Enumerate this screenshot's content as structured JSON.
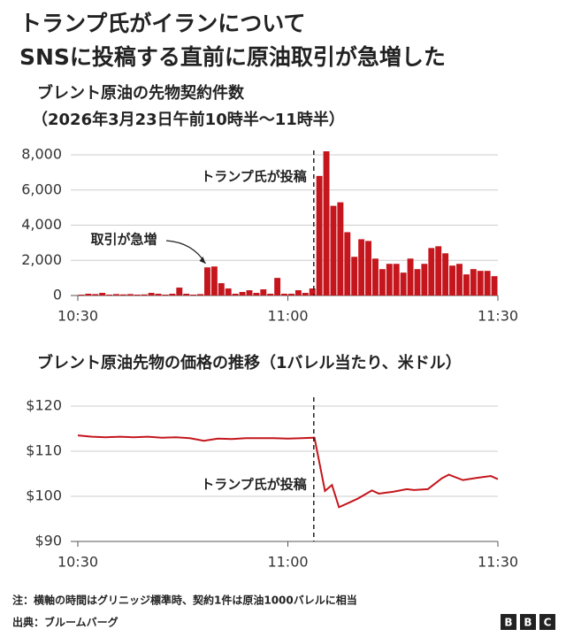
{
  "header": {
    "title_lines": [
      "トランプ氏がイランについて",
      "SNSに投稿する直前に原油取引が急増した"
    ]
  },
  "chart_data": [
    {
      "type": "bar",
      "title": "ブレント原油の先物契約件数",
      "subtitle": "（2026年3月23日午前10時半～11時半）",
      "color": "#c4161c",
      "grid": true,
      "x": [
        0,
        1,
        2,
        3,
        4,
        5,
        6,
        7,
        8,
        9,
        10,
        11,
        12,
        13,
        14,
        15,
        16,
        17,
        18,
        19,
        20,
        21,
        22,
        23,
        24,
        25,
        26,
        27,
        28,
        29,
        30,
        31,
        32,
        33,
        34,
        35,
        36,
        37,
        38,
        39,
        40,
        41,
        42,
        43,
        44,
        45,
        46,
        47,
        48,
        49,
        50,
        51,
        52,
        53,
        54,
        55,
        56,
        57,
        58,
        59
      ],
      "values": [
        50,
        100,
        80,
        150,
        50,
        80,
        60,
        80,
        50,
        60,
        150,
        100,
        50,
        100,
        450,
        100,
        50,
        80,
        1600,
        1650,
        700,
        400,
        100,
        200,
        300,
        150,
        350,
        100,
        1000,
        100,
        100,
        300,
        150,
        400,
        6800,
        8200,
        5100,
        5300,
        3600,
        2200,
        3200,
        3100,
        2100,
        1500,
        1800,
        1800,
        1300,
        2100,
        1500,
        1800,
        2700,
        2800,
        2400,
        1700,
        1800,
        1200,
        1500,
        1400,
        1400,
        1100
      ],
      "xlim": [
        0,
        60
      ],
      "xticks": [
        {
          "value": 0,
          "label": "10:30"
        },
        {
          "value": 30,
          "label": "11:00"
        },
        {
          "value": 60,
          "label": "11:30"
        }
      ],
      "ylim": [
        0,
        8000
      ],
      "yticks": [
        0,
        {
          "value": 2000,
          "label": "2,000"
        },
        {
          "value": 4000,
          "label": "4,000"
        },
        {
          "value": 6000,
          "label": "6,000"
        },
        {
          "value": 8000,
          "label": "8,000"
        }
      ],
      "annotations": [
        {
          "text": "トランプ氏が投稿",
          "x": 33.7
        },
        {
          "text": "取引が急増",
          "x": 18.5
        }
      ]
    },
    {
      "type": "line",
      "title": "ブレント原油先物の価格の推移（1バレル当たり、米ドル）",
      "series": [
        {
          "name": "ブレント原油先物",
          "color": "#c4161c",
          "x": [
            0,
            2,
            4,
            6,
            8,
            10,
            12,
            14,
            16,
            18,
            20,
            22,
            24,
            26,
            28,
            30,
            32,
            33.8,
            35.3,
            36.3,
            37.3,
            38.6,
            40,
            42,
            43,
            44,
            45,
            47,
            48,
            50,
            52,
            53,
            55,
            57,
            59,
            60
          ],
          "values": [
            113.5,
            113.2,
            113.1,
            113.2,
            113.1,
            113.2,
            113,
            113.1,
            112.9,
            112.3,
            112.8,
            112.7,
            112.9,
            112.9,
            112.9,
            112.8,
            112.9,
            113,
            101.2,
            102.5,
            97.6,
            98.5,
            99.5,
            101.3,
            100.6,
            100.8,
            101,
            101.6,
            101.4,
            101.6,
            104,
            104.8,
            103.6,
            104.1,
            104.5,
            103.8
          ]
        }
      ],
      "xlim": [
        0,
        60
      ],
      "xticks": [
        {
          "value": 0,
          "label": "10:30"
        },
        {
          "value": 30,
          "label": "11:00"
        },
        {
          "value": 60,
          "label": "11:30"
        }
      ],
      "ylim": [
        90,
        120
      ],
      "yticks": [
        {
          "value": 90,
          "label": "$90"
        },
        {
          "value": 100,
          "label": "$100"
        },
        {
          "value": 110,
          "label": "$110"
        },
        {
          "value": 120,
          "label": "$120"
        }
      ],
      "grid": true,
      "annotations": [
        {
          "text": "トランプ氏が投稿",
          "x": 33.7
        }
      ]
    }
  ],
  "footer": {
    "note": "注：横軸の時間はグリニッジ標準時、契約1件は原油1000バレルに相当",
    "source": "出典：ブルームバーグ"
  }
}
